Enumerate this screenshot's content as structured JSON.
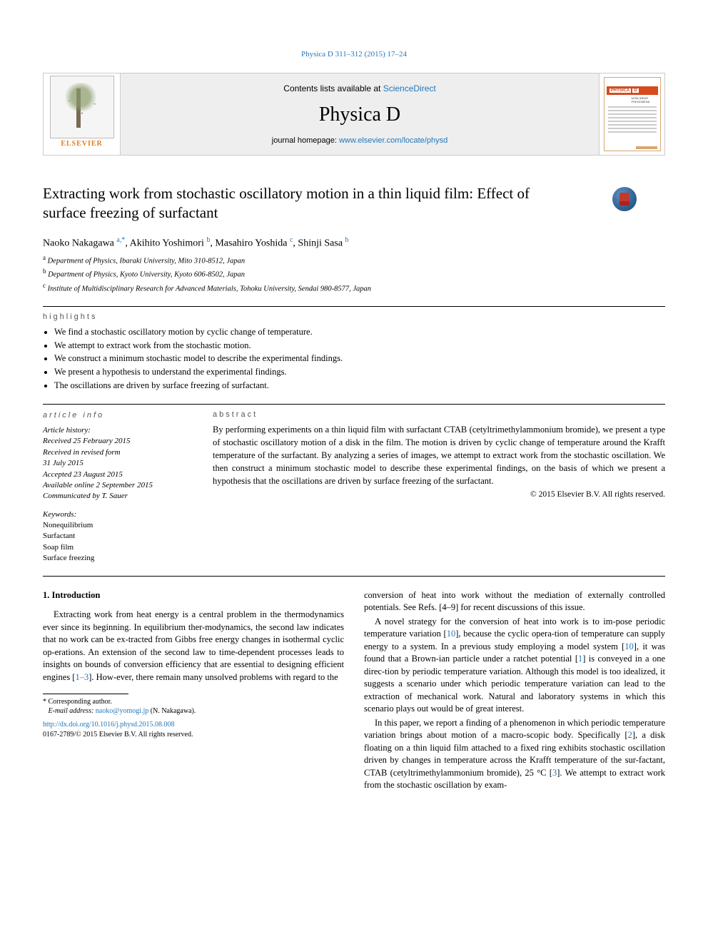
{
  "running_head": "Physica D 311–312 (2015) 17–24",
  "banner": {
    "contents_prefix": "Contents lists available at ",
    "contents_link": "ScienceDirect",
    "journal": "Physica D",
    "homepage_prefix": "journal homepage: ",
    "homepage_link": "www.elsevier.com/locate/physd",
    "elsevier": "ELSEVIER",
    "cover_brand": "PHYSICA",
    "cover_letter": "D",
    "cover_sub": "NONLINEAR PHENOMENA"
  },
  "crossmark_label": "CrossMark",
  "title": "Extracting work from stochastic oscillatory motion in a thin liquid film: Effect of surface freezing of surfactant",
  "authors": {
    "a1": "Naoko Nakagawa ",
    "a1_sup": "a,",
    "a1_star": "*",
    "a2": ", Akihito Yoshimori ",
    "a2_sup": "b",
    "a3": ", Masahiro Yoshida ",
    "a3_sup": "c",
    "a4": ", Shinji Sasa ",
    "a4_sup": "b"
  },
  "affil": {
    "a": "Department of Physics, Ibaraki University, Mito 310-8512, Japan",
    "b": "Department of Physics, Kyoto University, Kyoto 606-8502, Japan",
    "c": "Institute of Multidisciplinary Research for Advanced Materials, Tohoku University, Sendai 980-8577, Japan"
  },
  "labels": {
    "highlights": "highlights",
    "article_info": "article info",
    "abstract": "abstract"
  },
  "highlights": [
    "We find a stochastic oscillatory motion by cyclic change of temperature.",
    "We attempt to extract work from the stochastic motion.",
    "We construct a minimum stochastic model to describe the experimental findings.",
    "We present a hypothesis to understand the experimental findings.",
    "The oscillations are driven by surface freezing of surfactant."
  ],
  "article_info": {
    "history_label": "Article history:",
    "received": "Received 25 February 2015",
    "revised": "Received in revised form",
    "revised_date": "31 July 2015",
    "accepted": "Accepted 23 August 2015",
    "online": "Available online 2 September 2015",
    "cby": "Communicated by T. Sauer",
    "keywords_label": "Keywords:",
    "keywords": [
      "Nonequilibrium",
      "Surfactant",
      "Soap film",
      "Surface freezing"
    ]
  },
  "abstract": "By performing experiments on a thin liquid film with surfactant CTAB (cetyltrimethylammonium bromide), we present a type of stochastic oscillatory motion of a disk in the film. The motion is driven by cyclic change of temperature around the Krafft temperature of the surfactant. By analyzing a series of images, we attempt to extract work from the stochastic oscillation. We then construct a minimum stochastic model to describe these experimental findings, on the basis of which we present a hypothesis that the oscillations are driven by surface freezing of the surfactant.",
  "copyright": "© 2015 Elsevier B.V. All rights reserved.",
  "body": {
    "sec_num": "1.",
    "sec_title": "Introduction",
    "p1": "Extracting work from heat energy is a central problem in the thermodynamics ever since its beginning. In equilibrium ther-modynamics, the second law indicates that no work can be ex-tracted from Gibbs free energy changes in isothermal cyclic op-erations. An extension of the second law to time-dependent processes leads to insights on bounds of conversion efficiency that are essential to designing efficient engines [",
    "r1": "1–3",
    "p1b": "]. How-ever, there remain many unsolved problems with regard to the",
    "fn_star": "*",
    "fn_label": " Corresponding author.",
    "fn_email_label": "E-mail address: ",
    "fn_email": "naoko@yomogi.jp",
    "fn_person": " (N. Nakagawa).",
    "doi_url": "http://dx.doi.org/10.1016/j.physd.2015.08.008",
    "issn": "0167-2789/© 2015 Elsevier B.V. All rights reserved.",
    "p2a": "conversion of heat into work without the mediation of externally controlled potentials. See Refs. [4–9] for recent discussions of this issue.",
    "p2b": "A novel strategy for the conversion of heat into work is to im-pose periodic temperature variation [",
    "r2": "10",
    "p2c": "], because the cyclic opera-tion of temperature can supply energy to a system. In a previous study employing a model system [",
    "r3": "10",
    "p2d": "], it was found that a Brown-ian particle under a ratchet potential [",
    "r4": "1",
    "p2e": "] is conveyed in a one direc-tion by periodic temperature variation. Although this model is too idealized, it suggests a scenario under which periodic temperature variation can lead to the extraction of mechanical work. Natural and laboratory systems in which this scenario plays out would be of great interest.",
    "p2f": "In this paper, we report a finding of a phenomenon in which periodic temperature variation brings about motion of a macro-scopic body. Specifically [",
    "r5": "2",
    "p2g": "], a disk floating on a thin liquid film attached to a fixed ring exhibits stochastic oscillation driven by changes in temperature across the Krafft temperature of the sur-factant, CTAB (cetyltrimethylammonium bromide), 25 °C [",
    "r6": "3",
    "p2h": "]. We attempt to extract work from the stochastic oscillation by exam-"
  }
}
